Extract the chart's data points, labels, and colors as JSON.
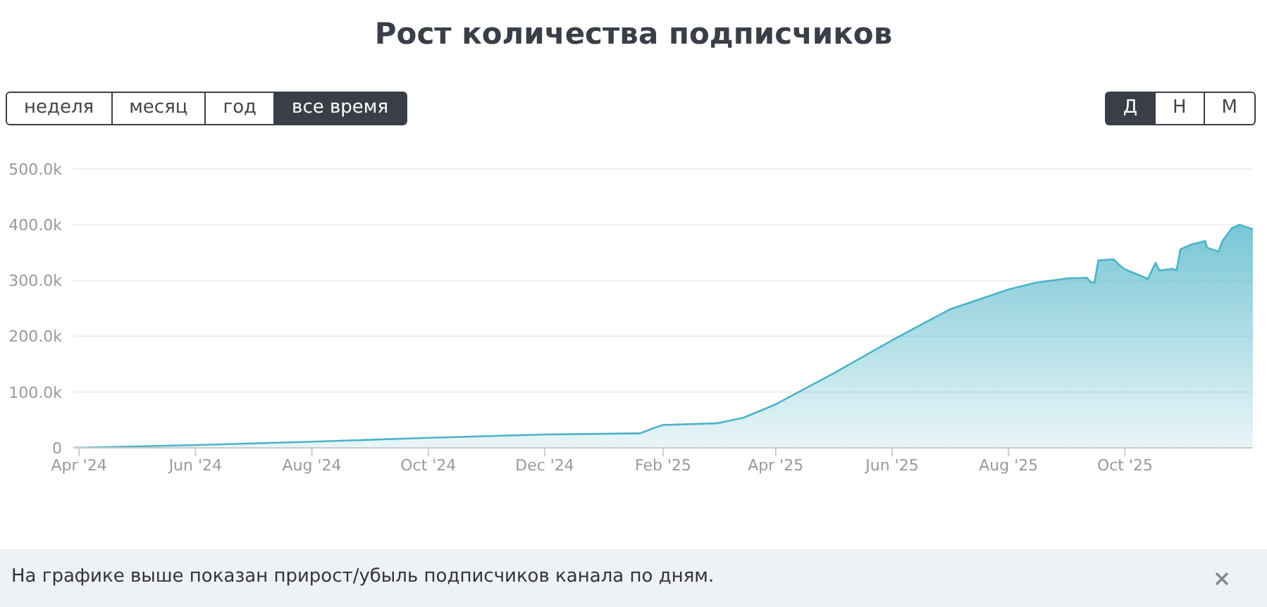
{
  "chart_data": {
    "type": "area",
    "title": "Рост количества подписчиков",
    "x": [
      "2024-03-29",
      "2024-06-01",
      "2024-08-01",
      "2024-10-01",
      "2024-12-01",
      "2025-01-20",
      "2025-01-26",
      "2025-02-01",
      "2025-03-01",
      "2025-03-15",
      "2025-04-01",
      "2025-05-01",
      "2025-06-01",
      "2025-07-01",
      "2025-08-01",
      "2025-08-15",
      "2025-09-01",
      "2025-09-11",
      "2025-09-13",
      "2025-09-15",
      "2025-09-17",
      "2025-09-25",
      "2025-09-29",
      "2025-10-01",
      "2025-10-13",
      "2025-10-17",
      "2025-10-19",
      "2025-10-26",
      "2025-10-28",
      "2025-10-30",
      "2025-11-05",
      "2025-11-12",
      "2025-11-13",
      "2025-11-19",
      "2025-11-21",
      "2025-11-26",
      "2025-11-30",
      "2025-12-07"
    ],
    "series": [
      {
        "color": "#4bb3c8",
        "values": [
          0,
          5000,
          11000,
          18000,
          24000,
          26000,
          34000,
          41000,
          44000,
          54000,
          78000,
          133000,
          193000,
          248000,
          284000,
          296000,
          304000,
          305000,
          297000,
          296000,
          336000,
          338000,
          325000,
          320000,
          303000,
          332000,
          318000,
          321000,
          318000,
          356000,
          365000,
          371000,
          359000,
          352000,
          371000,
          394000,
          400000,
          392000
        ]
      }
    ],
    "xlim": [
      "2024-03-29",
      "2025-12-07"
    ],
    "xticks": [
      {
        "value": "2024-04-01",
        "label": "Apr '24"
      },
      {
        "value": "2024-06-01",
        "label": "Jun '24"
      },
      {
        "value": "2024-08-01",
        "label": "Aug '24"
      },
      {
        "value": "2024-10-01",
        "label": "Oct '24"
      },
      {
        "value": "2024-12-01",
        "label": "Dec '24"
      },
      {
        "value": "2025-02-01",
        "label": "Feb '25"
      },
      {
        "value": "2025-04-01",
        "label": "Apr '25"
      },
      {
        "value": "2025-06-01",
        "label": "Jun '25"
      },
      {
        "value": "2025-08-01",
        "label": "Aug '25"
      },
      {
        "value": "2025-10-01",
        "label": "Oct '25"
      }
    ],
    "ylim": [
      0,
      500000
    ],
    "yticks": [
      0,
      {
        "value": 100000,
        "label": "100.0k"
      },
      {
        "value": 200000,
        "label": "200.0k"
      },
      {
        "value": 300000,
        "label": "300.0k"
      },
      {
        "value": 400000,
        "label": "400.0k"
      },
      {
        "value": 500000,
        "label": "500.0k"
      }
    ],
    "grid": "y",
    "annotations": [
      "неделя",
      "месяц",
      "год",
      "все время",
      "Д",
      "Н",
      "М",
      "На графике выше показан прирост/убыль подписчиков канала по дням."
    ]
  }
}
